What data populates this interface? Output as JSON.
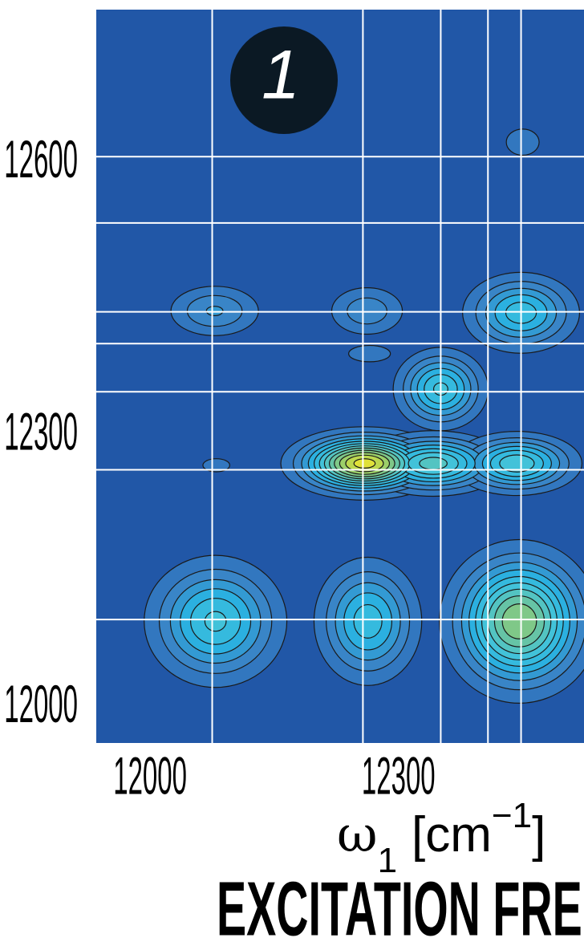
{
  "chart_data": {
    "type": "contour",
    "badge": "1",
    "x_symbol": "ω",
    "x_symbol_subscript": "1",
    "x_unit": "[cm",
    "x_unit_exponent": "−1",
    "x_unit_close": "]",
    "x_title": "EXCITATION FREQUENCY",
    "xlim": [
      11935,
      12524
    ],
    "ylim": [
      11958,
      12766
    ],
    "xticks": [
      12000,
      12300
    ],
    "yticks": [
      12000,
      12300,
      12600
    ],
    "reference_x": [
      12075,
      12257,
      12351,
      12408,
      12448
    ],
    "reference_y": [
      12604,
      12531,
      12433,
      12398,
      12345,
      12259,
      12094
    ],
    "background": "#2157a7",
    "colormap": [
      "#2a69b6",
      "#3a86c8",
      "#2ab4e2",
      "#45c4d8",
      "#6cc49c",
      "#a8d25c",
      "#f2e62e"
    ],
    "level_step": 0.08,
    "peaks": [
      {
        "x": 12078,
        "y": 12434,
        "amplitude": 0.25,
        "width_x": 35,
        "width_y": 18
      },
      {
        "x": 12262,
        "y": 12434,
        "amplitude": 0.22,
        "width_x": 30,
        "width_y": 18
      },
      {
        "x": 12448,
        "y": 12432,
        "amplitude": 0.45,
        "width_x": 38,
        "width_y": 24
      },
      {
        "x": 12450,
        "y": 12620,
        "amplitude": 0.12,
        "width_x": 22,
        "width_y": 16
      },
      {
        "x": 12351,
        "y": 12348,
        "amplitude": 0.5,
        "width_x": 30,
        "width_y": 24
      },
      {
        "x": 12265,
        "y": 12387,
        "amplitude": 0.12,
        "width_x": 28,
        "width_y": 10
      },
      {
        "x": 12259,
        "y": 12266,
        "amplitude": 1.0,
        "width_x": 45,
        "width_y": 18
      },
      {
        "x": 12342,
        "y": 12266,
        "amplitude": 0.6,
        "width_x": 45,
        "width_y": 18
      },
      {
        "x": 12443,
        "y": 12266,
        "amplitude": 0.55,
        "width_x": 40,
        "width_y": 18
      },
      {
        "x": 12080,
        "y": 12264,
        "amplitude": 0.12,
        "width_x": 18,
        "width_y": 8
      },
      {
        "x": 12079,
        "y": 12092,
        "amplitude": 0.5,
        "width_x": 45,
        "width_y": 38
      },
      {
        "x": 12263,
        "y": 12092,
        "amplitude": 0.45,
        "width_x": 35,
        "width_y": 38
      },
      {
        "x": 12446,
        "y": 12092,
        "amplitude": 0.8,
        "width_x": 45,
        "width_y": 42
      }
    ]
  }
}
